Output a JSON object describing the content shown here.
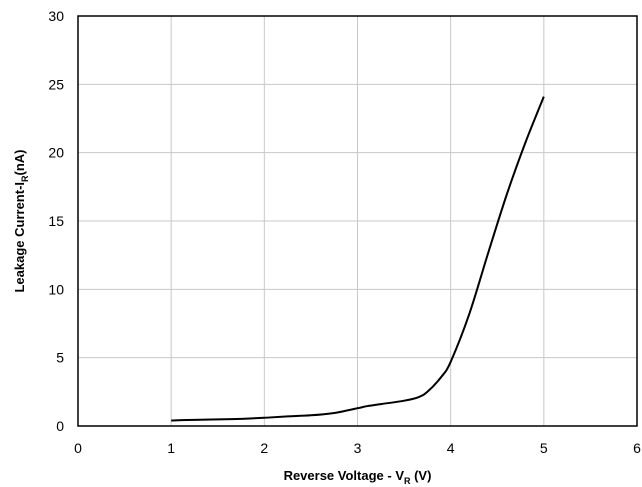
{
  "chart_data": {
    "type": "line",
    "title": "",
    "xlabel": "Reverse Voltage - V",
    "xlabel_sub": "R",
    "xlabel_suffix": " (V)",
    "ylabel": "Leakage Current-I",
    "ylabel_sub": "R",
    "ylabel_suffix": "(nA)",
    "xlim": [
      0,
      6
    ],
    "ylim": [
      0,
      30
    ],
    "xticks": [
      0,
      1,
      2,
      3,
      4,
      5,
      6
    ],
    "yticks": [
      0,
      5,
      10,
      15,
      20,
      25,
      30
    ],
    "grid": true,
    "legend": false,
    "series": [
      {
        "color": "#000000",
        "x": [
          1.0,
          1.25,
          1.5,
          1.75,
          2.0,
          2.25,
          2.5,
          2.75,
          3.0,
          3.1,
          3.25,
          3.5,
          3.65,
          3.75,
          3.9,
          4.0,
          4.2,
          4.4,
          4.6,
          4.8,
          5.0
        ],
        "y": [
          0.4,
          0.45,
          0.48,
          0.52,
          0.6,
          0.7,
          0.78,
          0.95,
          1.3,
          1.45,
          1.6,
          1.85,
          2.1,
          2.5,
          3.6,
          4.7,
          8.2,
          12.6,
          16.9,
          20.7,
          24.1
        ]
      }
    ]
  }
}
